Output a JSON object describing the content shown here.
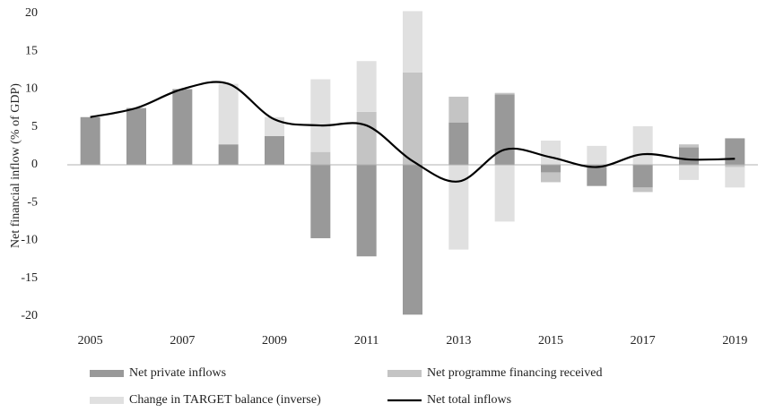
{
  "chart_data": {
    "type": "bar_line",
    "y_label": "Net financial inflow (% of GDP)",
    "categories": [
      "2005",
      null,
      "2007",
      null,
      "2009",
      null,
      "2011",
      null,
      "2013",
      null,
      "2015",
      null,
      "2017",
      null,
      "2019"
    ],
    "ylim": [
      -20,
      20
    ],
    "yticks": [
      -20,
      -15,
      -10,
      -5,
      0,
      5,
      10,
      15,
      20
    ],
    "series": [
      {
        "name": "Net private inflows",
        "type": "bar",
        "color": "#999999",
        "values": [
          6.3,
          7.5,
          10,
          2.7,
          3.8,
          -9.7,
          -12.1,
          -19.8,
          5.6,
          9.3,
          -1.0,
          -2.8,
          -3.0,
          2.3,
          3.5
        ]
      },
      {
        "name": "Net programme financing received",
        "type": "bar",
        "color": "#c4c4c4",
        "values": [
          0,
          0,
          0,
          0,
          0,
          1.7,
          7.0,
          12.2,
          3.4,
          0.2,
          -1.3,
          0,
          -0.6,
          0.4,
          -0.3
        ]
      },
      {
        "name": "Change in TARGET balance (inverse)",
        "type": "bar",
        "color": "#e0e0e0",
        "values": [
          0,
          0,
          0,
          8.0,
          2.5,
          9.6,
          6.7,
          8.1,
          -11.2,
          -7.5,
          3.2,
          2.5,
          5.1,
          -2.0,
          -2.7
        ]
      },
      {
        "name": "Net total inflows",
        "type": "line",
        "color": "#000000",
        "values": [
          6.3,
          7.5,
          10,
          10.7,
          6.0,
          5.2,
          5.2,
          0.5,
          -2.2,
          2.0,
          1.0,
          -0.3,
          1.4,
          0.7,
          0.8
        ]
      }
    ]
  }
}
